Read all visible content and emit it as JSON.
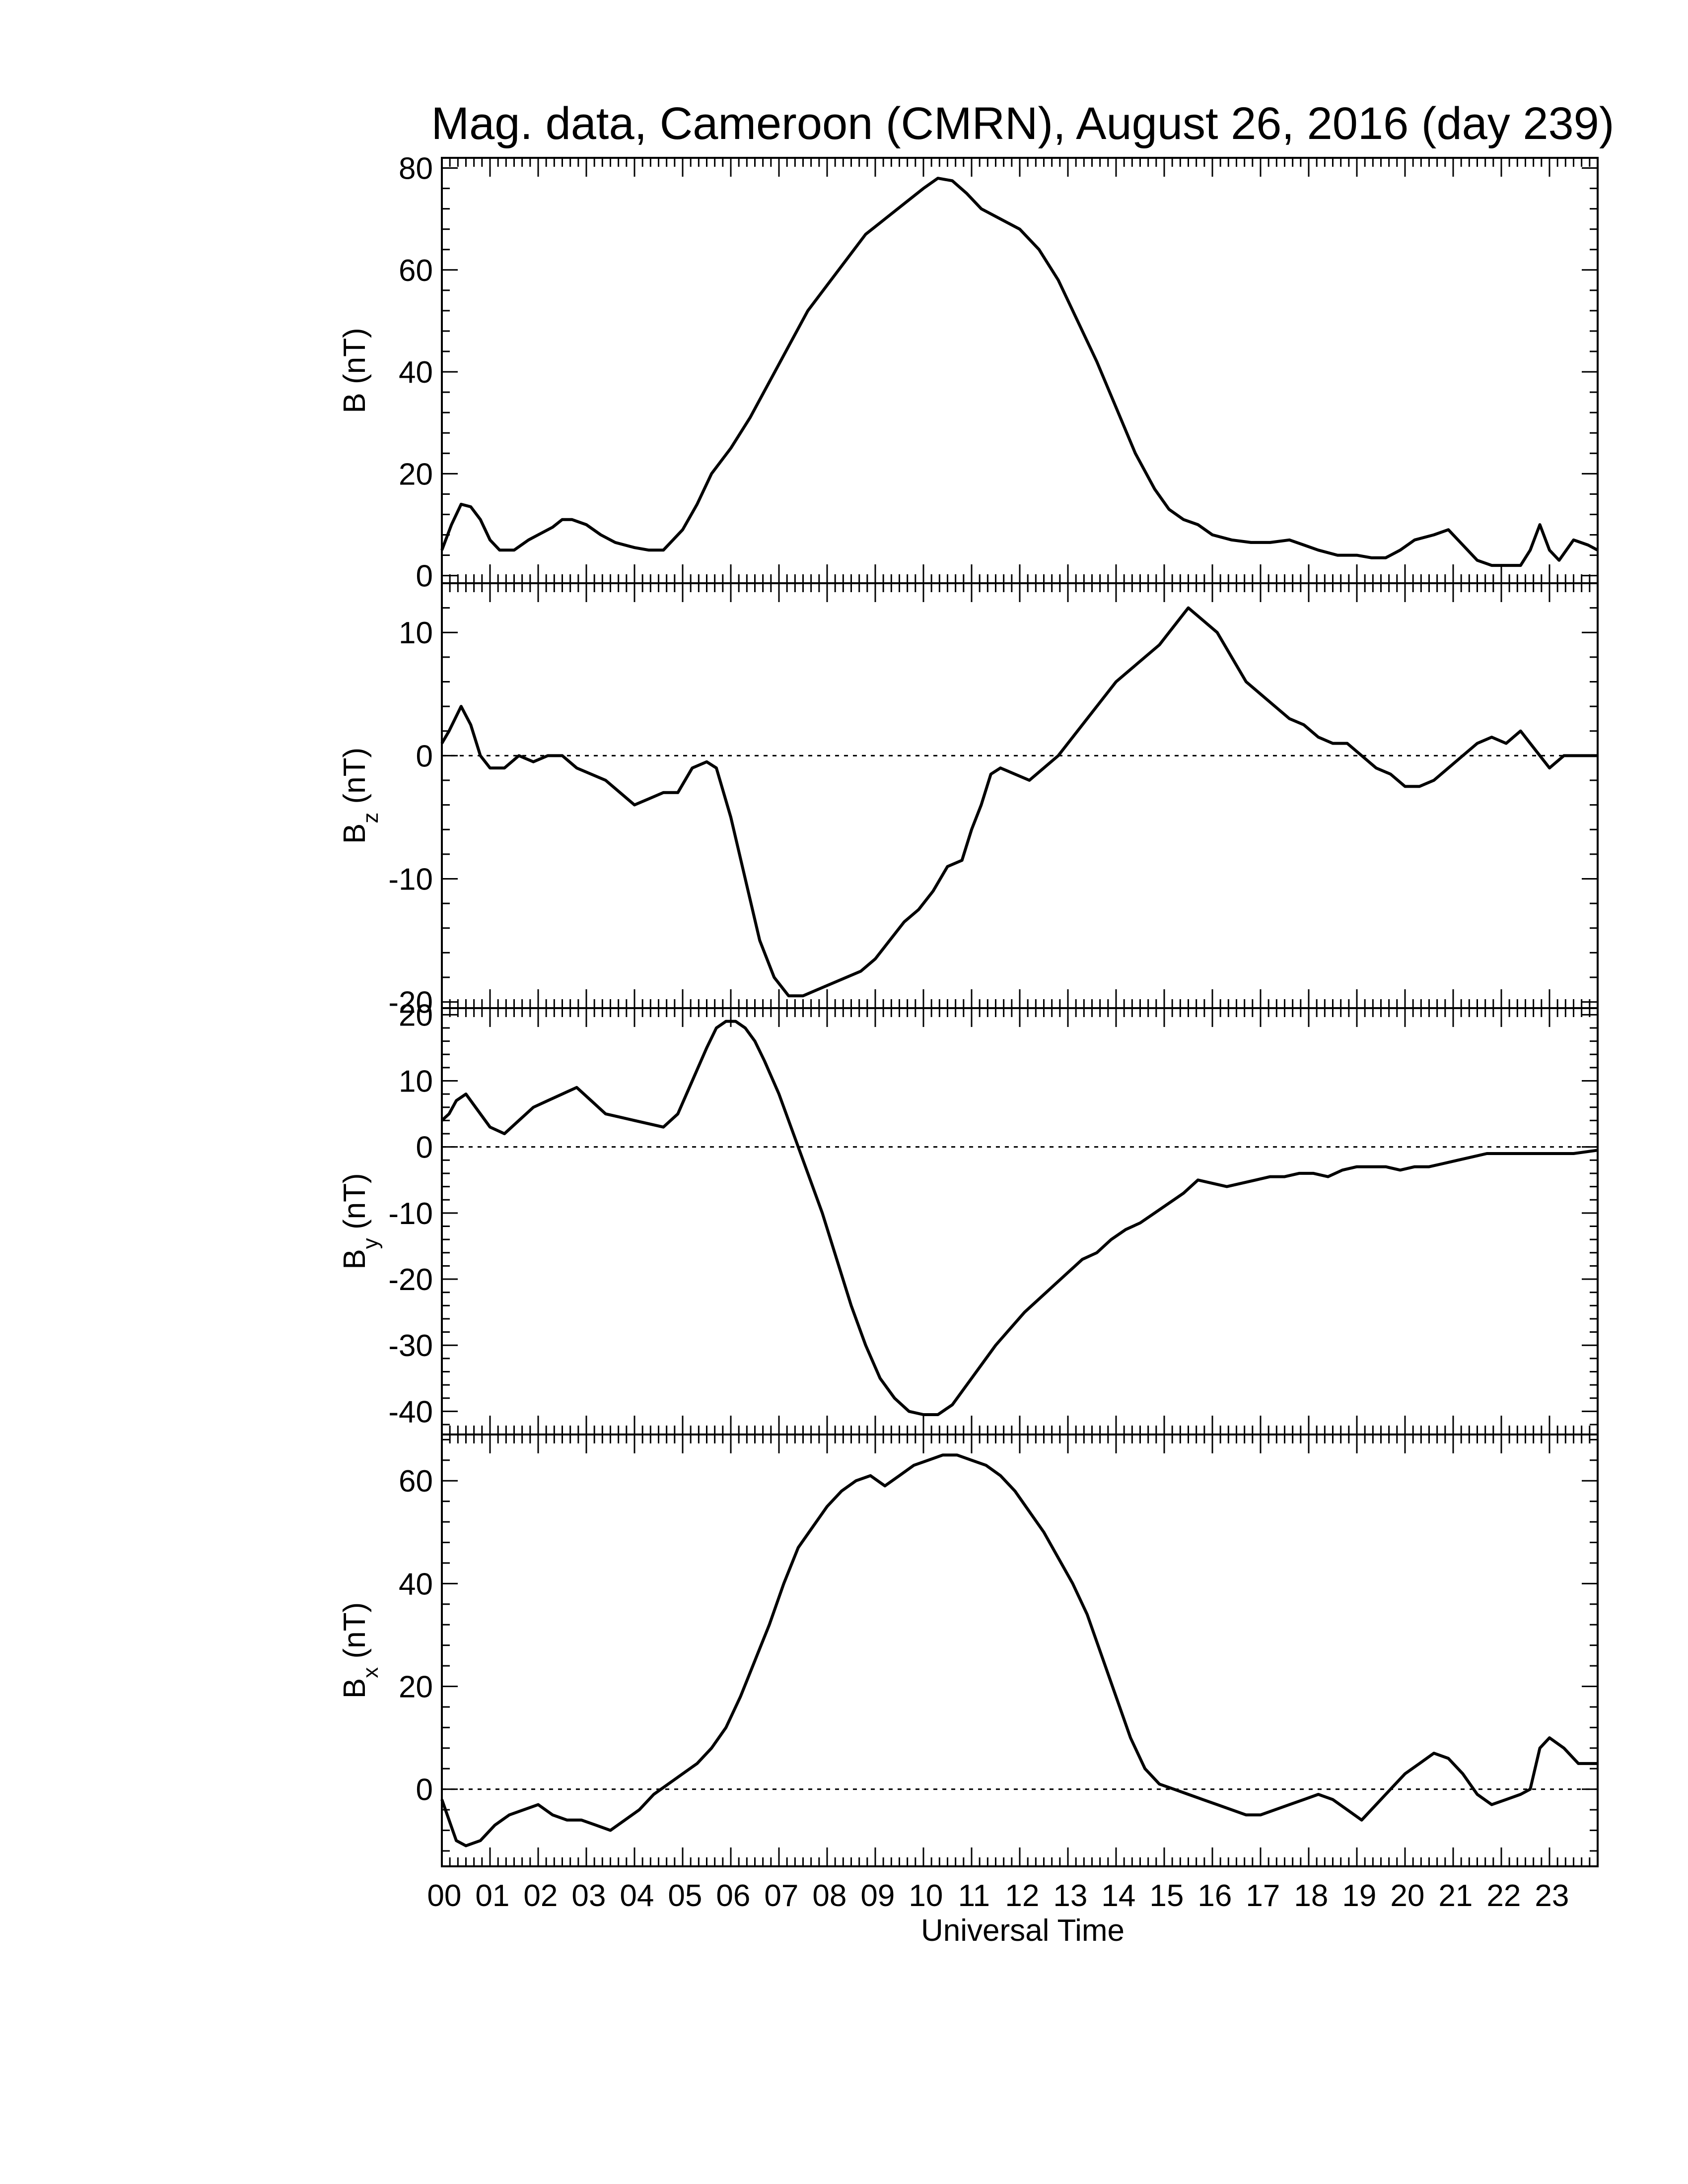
{
  "title": "Mag. data, Cameroon (CMRN), August 26, 2016 (day 239)",
  "chart_data": {
    "type": "line",
    "xlabel": "Universal Time",
    "x_ticks": [
      "00",
      "01",
      "02",
      "03",
      "04",
      "05",
      "06",
      "07",
      "08",
      "09",
      "10",
      "11",
      "12",
      "13",
      "14",
      "15",
      "16",
      "17",
      "18",
      "19",
      "20",
      "21",
      "22",
      "23"
    ],
    "xlim": [
      0,
      24
    ],
    "panels": [
      {
        "id": "B",
        "ylabel_main": "B",
        "ylabel_sub": "",
        "ylabel_unit": "(nT)",
        "ylim": [
          -1.5,
          82
        ],
        "yticks": [
          0,
          20,
          40,
          60,
          80
        ],
        "zero_line": false,
        "x": [
          0,
          0.2,
          0.4,
          0.6,
          0.8,
          1.0,
          1.2,
          1.5,
          1.8,
          2.0,
          2.3,
          2.5,
          2.7,
          3.0,
          3.3,
          3.6,
          4.0,
          4.3,
          4.6,
          5.0,
          5.3,
          5.6,
          6.0,
          6.4,
          6.8,
          7.2,
          7.6,
          8.0,
          8.4,
          8.8,
          9.2,
          9.6,
          10.0,
          10.3,
          10.6,
          10.9,
          11.2,
          11.6,
          12.0,
          12.4,
          12.8,
          13.2,
          13.6,
          14.0,
          14.4,
          14.8,
          15.1,
          15.4,
          15.7,
          16.0,
          16.4,
          16.8,
          17.2,
          17.6,
          17.9,
          18.2,
          18.6,
          19.0,
          19.3,
          19.6,
          19.9,
          20.2,
          20.6,
          20.9,
          21.2,
          21.5,
          21.8,
          22.1,
          22.4,
          22.6,
          22.8,
          23.0,
          23.2,
          23.5,
          23.8,
          24.0
        ],
        "y": [
          5,
          10,
          14,
          13.5,
          11,
          7,
          5,
          5,
          7,
          8,
          9.5,
          11,
          11,
          10,
          8,
          6.5,
          5.5,
          5,
          5,
          9,
          14,
          20,
          25,
          31,
          38,
          45,
          52,
          57,
          62,
          67,
          70,
          73,
          76,
          78,
          77.5,
          75,
          72,
          70,
          68,
          64,
          58,
          50,
          42,
          33,
          24,
          17,
          13,
          11,
          10,
          8,
          7,
          6.5,
          6.5,
          7,
          6,
          5,
          4,
          4,
          3.5,
          3.5,
          5,
          7,
          8,
          9,
          6,
          3,
          2,
          2,
          2,
          5,
          10,
          5,
          3,
          7,
          6,
          5
        ]
      },
      {
        "id": "Bz",
        "ylabel_main": "B",
        "ylabel_sub": "z",
        "ylabel_unit": "(nT)",
        "ylim": [
          -20.5,
          14
        ],
        "yticks": [
          -20,
          -10,
          0,
          10
        ],
        "zero_line": true,
        "x": [
          0,
          0.15,
          0.4,
          0.6,
          0.8,
          1.0,
          1.3,
          1.6,
          1.9,
          2.2,
          2.5,
          2.8,
          3.1,
          3.4,
          3.7,
          4.0,
          4.3,
          4.6,
          4.9,
          5.2,
          5.5,
          5.7,
          6.0,
          6.3,
          6.6,
          6.9,
          7.2,
          7.5,
          7.8,
          8.1,
          8.4,
          8.7,
          9.0,
          9.3,
          9.6,
          9.9,
          10.2,
          10.5,
          10.8,
          11.0,
          11.2,
          11.4,
          11.6,
          11.9,
          12.2,
          12.5,
          12.8,
          13.1,
          13.4,
          13.7,
          14.0,
          14.3,
          14.6,
          14.9,
          15.1,
          15.3,
          15.5,
          15.8,
          16.1,
          16.4,
          16.7,
          17.0,
          17.3,
          17.6,
          17.9,
          18.2,
          18.5,
          18.8,
          19.1,
          19.4,
          19.7,
          20.0,
          20.3,
          20.6,
          20.9,
          21.2,
          21.5,
          21.8,
          22.1,
          22.4,
          22.6,
          22.8,
          23.0,
          23.3,
          23.6,
          24.0
        ],
        "y": [
          1,
          2,
          4,
          2.5,
          0,
          -1,
          -1,
          0,
          -0.5,
          0,
          0,
          -1,
          -1.5,
          -2,
          -3,
          -4,
          -3.5,
          -3,
          -3,
          -1,
          -0.5,
          -1,
          -5,
          -10,
          -15,
          -18,
          -19.5,
          -19.5,
          -19,
          -18.5,
          -18,
          -17.5,
          -16.5,
          -15,
          -13.5,
          -12.5,
          -11,
          -9,
          -8.5,
          -6,
          -4,
          -1.5,
          -1,
          -1.5,
          -2,
          -1,
          0,
          1.5,
          3,
          4.5,
          6,
          7,
          8,
          9,
          10,
          11,
          12,
          11,
          10,
          8,
          6,
          5,
          4,
          3,
          2.5,
          1.5,
          1,
          1,
          0,
          -1,
          -1.5,
          -2.5,
          -2.5,
          -2,
          -1,
          0,
          1,
          1.5,
          1,
          2,
          1,
          0,
          -1,
          0,
          0,
          0
        ]
      },
      {
        "id": "By",
        "ylabel_main": "B",
        "ylabel_sub": "y",
        "ylabel_unit": "(nT)",
        "ylim": [
          -43.5,
          21
        ],
        "yticks": [
          -40,
          -30,
          -20,
          -10,
          0,
          10,
          20
        ],
        "zero_line": true,
        "x": [
          0,
          0.15,
          0.3,
          0.5,
          0.7,
          1.0,
          1.3,
          1.6,
          1.9,
          2.2,
          2.5,
          2.8,
          3.1,
          3.4,
          3.7,
          4.0,
          4.3,
          4.6,
          4.9,
          5.2,
          5.5,
          5.7,
          5.9,
          6.1,
          6.3,
          6.5,
          6.7,
          7.0,
          7.3,
          7.6,
          7.9,
          8.2,
          8.5,
          8.8,
          9.1,
          9.4,
          9.7,
          10.0,
          10.3,
          10.6,
          10.9,
          11.2,
          11.5,
          11.8,
          12.1,
          12.4,
          12.7,
          13.0,
          13.3,
          13.6,
          13.9,
          14.2,
          14.5,
          14.8,
          15.1,
          15.4,
          15.7,
          16.0,
          16.3,
          16.6,
          16.9,
          17.2,
          17.5,
          17.8,
          18.1,
          18.4,
          18.7,
          19.0,
          19.3,
          19.6,
          19.9,
          20.2,
          20.5,
          20.8,
          21.1,
          21.4,
          21.7,
          22.0,
          22.3,
          22.6,
          22.9,
          23.2,
          23.5,
          24.0
        ],
        "y": [
          4,
          5,
          7,
          8,
          6,
          3,
          2,
          4,
          6,
          7,
          8,
          9,
          7,
          5,
          4.5,
          4,
          3.5,
          3,
          5,
          10,
          15,
          18,
          19,
          19,
          18,
          16,
          13,
          8,
          2,
          -4,
          -10,
          -17,
          -24,
          -30,
          -35,
          -38,
          -40,
          -40.5,
          -40.5,
          -39,
          -36,
          -33,
          -30,
          -27.5,
          -25,
          -23,
          -21,
          -19,
          -17,
          -16,
          -14,
          -12.5,
          -11.5,
          -10,
          -8.5,
          -7,
          -5,
          -5.5,
          -6,
          -5.5,
          -5,
          -4.5,
          -4.5,
          -4,
          -4,
          -4.5,
          -3.5,
          -3,
          -3,
          -3,
          -3.5,
          -3,
          -3,
          -2.5,
          -2,
          -1.5,
          -1,
          -1,
          -1,
          -1,
          -1,
          -1,
          -1,
          -0.5
        ]
      },
      {
        "id": "Bx",
        "ylabel_main": "B",
        "ylabel_sub": "x",
        "ylabel_unit": "(nT)",
        "ylim": [
          -15,
          69
        ],
        "yticks": [
          0,
          20,
          40,
          60
        ],
        "zero_line": true,
        "x": [
          0,
          0.15,
          0.3,
          0.5,
          0.8,
          1.1,
          1.4,
          1.7,
          2.0,
          2.3,
          2.6,
          2.9,
          3.2,
          3.5,
          3.8,
          4.1,
          4.4,
          4.7,
          5.0,
          5.3,
          5.6,
          5.9,
          6.2,
          6.5,
          6.8,
          7.1,
          7.4,
          7.7,
          8.0,
          8.3,
          8.6,
          8.9,
          9.2,
          9.5,
          9.8,
          10.1,
          10.4,
          10.7,
          11.0,
          11.3,
          11.6,
          11.9,
          12.2,
          12.5,
          12.8,
          13.1,
          13.4,
          13.7,
          14.0,
          14.3,
          14.6,
          14.9,
          15.2,
          15.5,
          15.8,
          16.1,
          16.4,
          16.7,
          17.0,
          17.3,
          17.6,
          17.9,
          18.2,
          18.5,
          18.8,
          19.1,
          19.4,
          19.7,
          20.0,
          20.3,
          20.6,
          20.9,
          21.2,
          21.5,
          21.8,
          22.1,
          22.4,
          22.6,
          22.8,
          23.0,
          23.3,
          23.6,
          24.0
        ],
        "y": [
          -2,
          -6,
          -10,
          -11,
          -10,
          -7,
          -5,
          -4,
          -3,
          -5,
          -6,
          -6,
          -7,
          -8,
          -6,
          -4,
          -1,
          1,
          3,
          5,
          8,
          12,
          18,
          25,
          32,
          40,
          47,
          51,
          55,
          58,
          60,
          61,
          59,
          61,
          63,
          64,
          65,
          65,
          64,
          63,
          61,
          58,
          54,
          50,
          45,
          40,
          34,
          26,
          18,
          10,
          4,
          1,
          0,
          -1,
          -2,
          -3,
          -4,
          -5,
          -5,
          -4,
          -3,
          -2,
          -1,
          -2,
          -4,
          -6,
          -3,
          0,
          3,
          5,
          7,
          6,
          3,
          -1,
          -3,
          -2,
          -1,
          0,
          8,
          10,
          8,
          5,
          5
        ]
      }
    ]
  }
}
